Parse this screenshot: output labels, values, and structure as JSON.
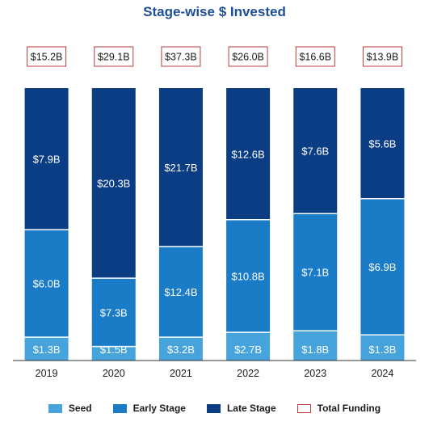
{
  "chart_data": {
    "type": "bar",
    "stacked": true,
    "title": "Stage-wise $ Invested",
    "categories": [
      "2019",
      "2020",
      "2021",
      "2022",
      "2023",
      "2024"
    ],
    "series": [
      {
        "name": "Seed",
        "color": "#47a3dc",
        "values": [
          1.3,
          1.5,
          3.2,
          2.7,
          1.8,
          1.3
        ],
        "labels": [
          "$1.3B",
          "$1.5B",
          "$3.2B",
          "$2.7B",
          "$1.8B",
          "$1.3B"
        ]
      },
      {
        "name": "Early Stage",
        "color": "#1a7bc6",
        "values": [
          6.0,
          7.3,
          12.4,
          10.8,
          7.1,
          6.9
        ],
        "labels": [
          "$6.0B",
          "$7.3B",
          "$12.4B",
          "$10.8B",
          "$7.1B",
          "$6.9B"
        ]
      },
      {
        "name": "Late Stage",
        "color": "#0b3d84",
        "values": [
          7.9,
          20.3,
          21.7,
          12.6,
          7.6,
          5.6
        ],
        "labels": [
          "$7.9B",
          "$20.3B",
          "$21.7B",
          "$12.6B",
          "$7.6B",
          "$5.6B"
        ]
      }
    ],
    "totals": {
      "name": "Total Funding",
      "color": "#b83c3c",
      "values": [
        15.2,
        29.1,
        37.3,
        26.0,
        16.6,
        13.9
      ],
      "labels": [
        "$15.2B",
        "$29.1B",
        "$37.3B",
        "$26.0B",
        "$16.6B",
        "$13.9B"
      ]
    },
    "normalized_to_100_percent": true,
    "grid": false,
    "legend_position": "bottom-center"
  }
}
